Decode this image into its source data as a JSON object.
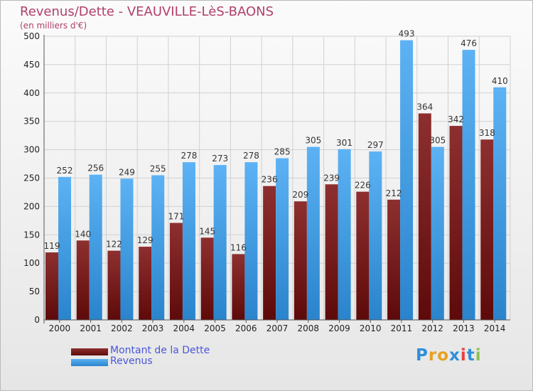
{
  "chart_data": {
    "type": "bar",
    "title": "Revenus/Dette - VEAUVILLE-LèS-BAONS",
    "subtitle": "(en milliers d'€)",
    "categories": [
      "2000",
      "2001",
      "2002",
      "2003",
      "2004",
      "2005",
      "2006",
      "2007",
      "2008",
      "2009",
      "2010",
      "2011",
      "2012",
      "2013",
      "2014"
    ],
    "series": [
      {
        "name": "Montant de la Dette",
        "color": "#7a1c1c",
        "values": [
          119,
          140,
          122,
          129,
          171,
          145,
          116,
          236,
          209,
          239,
          226,
          212,
          364,
          342,
          318
        ]
      },
      {
        "name": "Revenus",
        "color": "#3d9be8",
        "values": [
          252,
          256,
          249,
          255,
          278,
          273,
          278,
          285,
          305,
          301,
          297,
          493,
          305,
          476,
          410
        ]
      }
    ],
    "ylim": [
      0,
      500
    ],
    "yticks": [
      0,
      50,
      100,
      150,
      200,
      250,
      300,
      350,
      400,
      450,
      500
    ],
    "grid": true,
    "legend_position": "bottom-left"
  },
  "legend": [
    {
      "label": "Montant de la Dette",
      "color": "#7a1c1c"
    },
    {
      "label": "Revenus",
      "color": "#3d9be8"
    }
  ],
  "logo": {
    "text": "Proxiti",
    "colors": [
      "#2f8fd8",
      "#e8a020",
      "#e8a020",
      "#2f8fd8",
      "#e84040",
      "#2f8fd8",
      "#8bc34a"
    ]
  }
}
